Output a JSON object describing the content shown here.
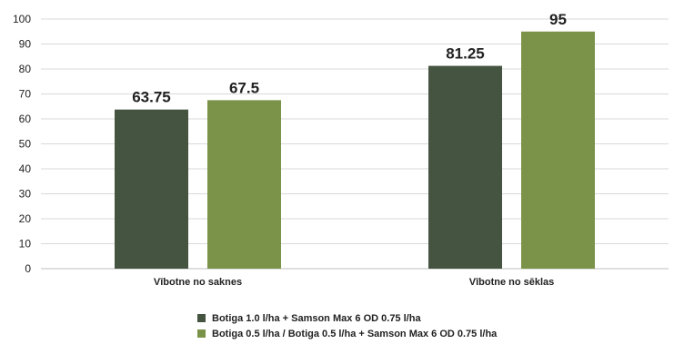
{
  "chart_data": {
    "type": "bar",
    "categories": [
      "Vībotne no saknes",
      "Vībotne no sēklas"
    ],
    "series": [
      {
        "name": "Botiga 1.0 l/ha + Samson Max 6 OD 0.75 l/ha",
        "values": [
          63.75,
          81.25
        ],
        "color": "#445440"
      },
      {
        "name": "Botiga 0.5 l/ha / Botiga 0.5 l/ha + Samson Max 6 OD 0.75 l/ha",
        "values": [
          67.5,
          95
        ],
        "color": "#7a9348"
      }
    ],
    "data_labels": [
      [
        "63.75",
        "81.25"
      ],
      [
        "67.5",
        "95"
      ]
    ],
    "ylim": [
      0,
      100
    ],
    "yticks": [
      0,
      10,
      20,
      30,
      40,
      50,
      60,
      70,
      80,
      90,
      100
    ],
    "grid": true,
    "legend_position": "bottom",
    "title": "",
    "xlabel": "",
    "ylabel": ""
  },
  "legend": [
    {
      "label": "Botiga 1.0 l/ha + Samson Max 6 OD 0.75 l/ha",
      "color": "#445440"
    },
    {
      "label": "Botiga 0.5 l/ha / Botiga 0.5 l/ha + Samson Max 6 OD 0.75 l/ha",
      "color": "#7a9348"
    }
  ]
}
